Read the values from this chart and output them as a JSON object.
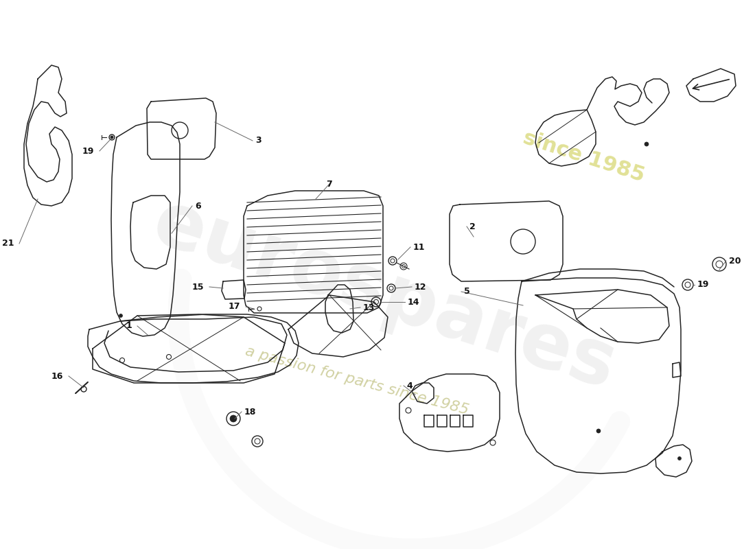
{
  "bg_color": "#ffffff",
  "line_color": "#222222",
  "lw": 1.1,
  "watermark1": "eurospares",
  "watermark2": "a passion for parts since 1985",
  "watermark3": "since 1985"
}
